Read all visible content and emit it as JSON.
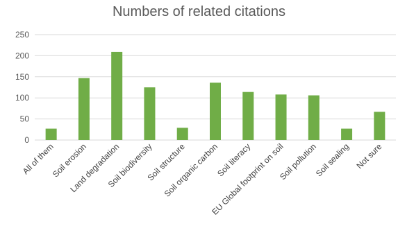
{
  "chart_data": {
    "type": "bar",
    "title": "Numbers of related citations",
    "xlabel": "",
    "ylabel": "",
    "ylim": [
      0,
      250
    ],
    "yticks": [
      0,
      50,
      100,
      150,
      200,
      250
    ],
    "grid": true,
    "legend": "none",
    "bar_color": "#70AD47",
    "grid_color": "#D9D9D9",
    "categories": [
      "All of them",
      "Soil erosion",
      "Land degradation",
      "Soil biodiversity",
      "Soil structure",
      "Soil organic carbon",
      "Soil literacy",
      "EU Global footprint on soil",
      "Soil pollution",
      "Soil sealing",
      "Not sure"
    ],
    "values": [
      27,
      147,
      209,
      125,
      29,
      136,
      114,
      108,
      106,
      27,
      67
    ]
  }
}
